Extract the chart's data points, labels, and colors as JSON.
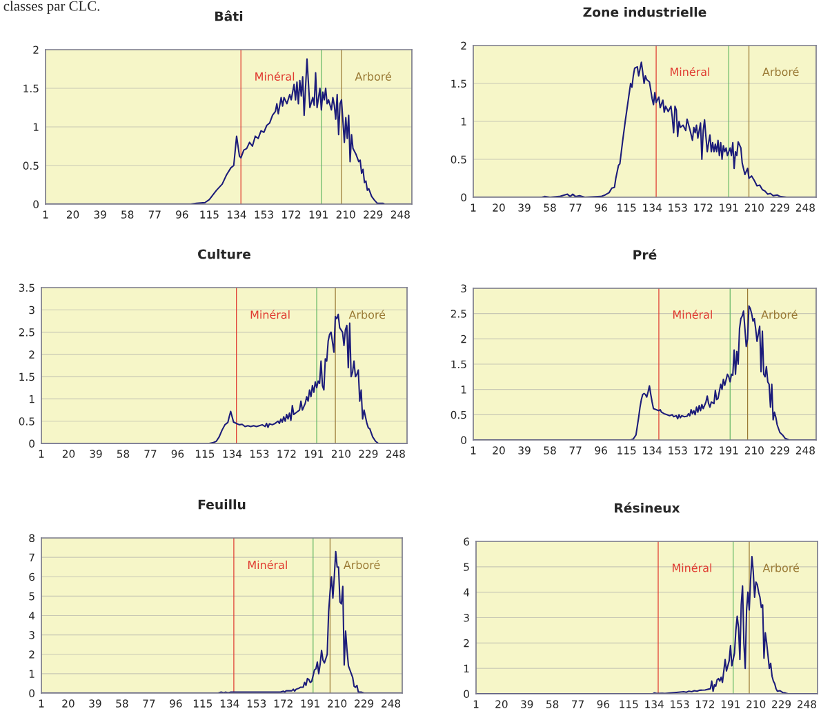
{
  "chart_data": [
    {
      "type": "line",
      "title": "Bâti",
      "annotations": [
        "classes par CLC."
      ],
      "xlim": [
        1,
        256
      ],
      "xticks": [
        1,
        20,
        39,
        58,
        77,
        96,
        115,
        134,
        153,
        172,
        191,
        210,
        229,
        248
      ],
      "ylim": [
        0,
        2
      ],
      "yticks": [
        0,
        0.5,
        1,
        1.5,
        2
      ],
      "grid": "y",
      "ref_lines": [
        {
          "axis": "x",
          "value": 137,
          "label": "Minéral",
          "color": "#e03a30"
        },
        {
          "axis": "x",
          "value": 193,
          "color": "#66b866"
        },
        {
          "axis": "x",
          "value": 207,
          "label": "Arboré",
          "color": "#9a7a35"
        }
      ],
      "series": [
        {
          "color": "#1c1c7a",
          "x": [
            1,
            102,
            106,
            112,
            115,
            120,
            124,
            127,
            130,
            132,
            134,
            136,
            137,
            139,
            141,
            143,
            145,
            147,
            149,
            151,
            153,
            155,
            157,
            159,
            161,
            162,
            163,
            165,
            166,
            167,
            169,
            171,
            172,
            174,
            175,
            176,
            177,
            178,
            179,
            180,
            181,
            183,
            185,
            187,
            188,
            189,
            190,
            192,
            193,
            194,
            195,
            196,
            197,
            198,
            200,
            201,
            202,
            203,
            204,
            205,
            206,
            207,
            209,
            210,
            211,
            212,
            213,
            214,
            215,
            217,
            219,
            220,
            221,
            222,
            223,
            224,
            225,
            226,
            228,
            230,
            232,
            236,
            237,
            256
          ],
          "values": [
            0,
            0,
            0.01,
            0.02,
            0.06,
            0.18,
            0.26,
            0.38,
            0.47,
            0.5,
            0.88,
            0.62,
            0.6,
            0.7,
            0.72,
            0.8,
            0.75,
            0.88,
            0.85,
            0.95,
            0.93,
            1.02,
            1.05,
            1.15,
            1.2,
            1.3,
            1.17,
            1.38,
            1.27,
            1.38,
            1.3,
            1.42,
            1.35,
            1.55,
            1.35,
            1.58,
            1.3,
            1.6,
            1.4,
            1.65,
            1.15,
            1.88,
            1.25,
            1.38,
            1.28,
            1.7,
            1.25,
            1.5,
            1.22,
            1.45,
            1.35,
            1.5,
            1.3,
            1.35,
            1.22,
            1.38,
            1.28,
            1.1,
            1.42,
            0.9,
            1.3,
            1.35,
            0.8,
            1.12,
            0.85,
            1.15,
            0.55,
            0.9,
            0.72,
            0.65,
            0.55,
            0.57,
            0.4,
            0.45,
            0.28,
            0.3,
            0.18,
            0.2,
            0.1,
            0.05,
            0.01,
            0.01,
            0,
            0
          ]
        }
      ]
    },
    {
      "type": "line",
      "title": "Zone industrielle",
      "xlim": [
        1,
        256
      ],
      "xticks": [
        1,
        20,
        39,
        58,
        77,
        96,
        115,
        134,
        153,
        172,
        191,
        210,
        229,
        248
      ],
      "ylim": [
        0,
        2
      ],
      "yticks": [
        0,
        0.5,
        1,
        1.5,
        2
      ],
      "grid": "y",
      "ref_lines": [
        {
          "axis": "x",
          "value": 137,
          "label": "Minéral",
          "color": "#e03a30"
        },
        {
          "axis": "x",
          "value": 191,
          "color": "#66b866"
        },
        {
          "axis": "x",
          "value": 206,
          "label": "Arboré",
          "color": "#9a7a35"
        }
      ],
      "series": [
        {
          "color": "#1c1c7a",
          "x": [
            1,
            52,
            54,
            58,
            65,
            71,
            73,
            75,
            77,
            80,
            84,
            96,
            99,
            102,
            104,
            106,
            107,
            109,
            110,
            112,
            114,
            116,
            118,
            119,
            120,
            121,
            123,
            124,
            126,
            127,
            128,
            129,
            130,
            132,
            134,
            135,
            136,
            137,
            139,
            140,
            142,
            143,
            144,
            146,
            148,
            149,
            150,
            151,
            152,
            153,
            154,
            155,
            157,
            159,
            160,
            162,
            164,
            165,
            166,
            167,
            168,
            170,
            171,
            172,
            173,
            174,
            175,
            176,
            177,
            178,
            179,
            180,
            181,
            182,
            183,
            184,
            185,
            186,
            187,
            188,
            189,
            190,
            192,
            193,
            194,
            195,
            196,
            197,
            198,
            200,
            201,
            203,
            205,
            206,
            208,
            210,
            212,
            214,
            216,
            218,
            220,
            222,
            224,
            227,
            229,
            234,
            256
          ],
          "values": [
            0,
            0,
            0.01,
            0,
            0.01,
            0.04,
            0.01,
            0.04,
            0.01,
            0.02,
            0,
            0.01,
            0.03,
            0.06,
            0.12,
            0.13,
            0.25,
            0.42,
            0.44,
            0.73,
            1.0,
            1.25,
            1.5,
            1.45,
            1.6,
            1.7,
            1.72,
            1.6,
            1.78,
            1.65,
            1.5,
            1.6,
            1.55,
            1.52,
            1.3,
            1.22,
            1.38,
            1.25,
            1.32,
            1.18,
            1.28,
            1.12,
            1.2,
            1.13,
            1.2,
            1.05,
            0.85,
            1.2,
            1.15,
            0.8,
            1.0,
            0.92,
            0.95,
            0.88,
            1.03,
            0.9,
            0.75,
            0.92,
            0.85,
            0.95,
            0.78,
            0.98,
            0.5,
            0.88,
            1.02,
            0.8,
            0.6,
            0.72,
            0.82,
            0.6,
            0.72,
            0.6,
            0.7,
            0.6,
            0.75,
            0.55,
            0.72,
            0.5,
            0.68,
            0.6,
            0.65,
            0.55,
            0.65,
            0.55,
            0.72,
            0.38,
            0.6,
            0.55,
            0.73,
            0.65,
            0.45,
            0.3,
            0.38,
            0.25,
            0.28,
            0.22,
            0.15,
            0.16,
            0.1,
            0.08,
            0.04,
            0.05,
            0.02,
            0.03,
            0.01,
            0,
            0
          ]
        }
      ]
    },
    {
      "type": "line",
      "title": "Culture",
      "xlim": [
        1,
        256
      ],
      "xticks": [
        1,
        20,
        39,
        58,
        77,
        96,
        115,
        134,
        153,
        172,
        191,
        210,
        229,
        248
      ],
      "ylim": [
        0,
        3.5
      ],
      "yticks": [
        0,
        0.5,
        1,
        1.5,
        2,
        2.5,
        3,
        3.5
      ],
      "grid": "y",
      "ref_lines": [
        {
          "axis": "x",
          "value": 137,
          "label": "Minéral",
          "color": "#e03a30"
        },
        {
          "axis": "x",
          "value": 193,
          "color": "#66b866"
        },
        {
          "axis": "x",
          "value": 206,
          "label": "Arboré",
          "color": "#9a7a35"
        }
      ],
      "series": [
        {
          "color": "#1c1c7a",
          "x": [
            1,
            118,
            121,
            123,
            125,
            127,
            129,
            131,
            132,
            133,
            134,
            135,
            137,
            139,
            141,
            143,
            145,
            147,
            149,
            151,
            153,
            155,
            157,
            158,
            159,
            160,
            162,
            164,
            166,
            167,
            168,
            169,
            170,
            171,
            172,
            173,
            174,
            175,
            176,
            177,
            179,
            181,
            182,
            183,
            185,
            186,
            187,
            188,
            189,
            190,
            191,
            192,
            193,
            194,
            195,
            196,
            197,
            198,
            199,
            200,
            201,
            202,
            203,
            205,
            206,
            207,
            208,
            209,
            210,
            211,
            212,
            213,
            214,
            215,
            216,
            217,
            218,
            219,
            220,
            221,
            222,
            223,
            224,
            225,
            226,
            228,
            229,
            230,
            232,
            234,
            236,
            256
          ],
          "values": [
            0,
            0,
            0.02,
            0.05,
            0.15,
            0.3,
            0.42,
            0.47,
            0.6,
            0.72,
            0.6,
            0.48,
            0.45,
            0.42,
            0.43,
            0.38,
            0.4,
            0.38,
            0.4,
            0.38,
            0.4,
            0.42,
            0.38,
            0.45,
            0.36,
            0.44,
            0.42,
            0.45,
            0.5,
            0.45,
            0.55,
            0.48,
            0.6,
            0.5,
            0.65,
            0.55,
            0.68,
            0.52,
            0.85,
            0.65,
            0.7,
            0.75,
            0.95,
            0.75,
            0.9,
            1.05,
            0.95,
            1.2,
            1.05,
            1.3,
            1.15,
            1.38,
            1.25,
            1.4,
            1.35,
            1.85,
            1.3,
            1.2,
            1.9,
            1.85,
            2.3,
            2.45,
            2.5,
            2.05,
            2.85,
            2.8,
            2.9,
            2.6,
            2.55,
            2.5,
            2.2,
            2.55,
            2.65,
            1.7,
            2.7,
            1.5,
            1.6,
            1.85,
            1.5,
            1.55,
            1.65,
            0.95,
            1.2,
            0.55,
            0.75,
            0.45,
            0.35,
            0.33,
            0.15,
            0.05,
            0,
            0
          ]
        }
      ]
    },
    {
      "type": "line",
      "title": "Pré",
      "xlim": [
        1,
        256
      ],
      "xticks": [
        1,
        20,
        39,
        58,
        77,
        96,
        115,
        134,
        153,
        172,
        191,
        210,
        229,
        248
      ],
      "ylim": [
        0,
        3
      ],
      "yticks": [
        0,
        0.5,
        1,
        1.5,
        2,
        2.5,
        3
      ],
      "grid": "y",
      "ref_lines": [
        {
          "axis": "x",
          "value": 139,
          "label": "Minéral",
          "color": "#e03a30"
        },
        {
          "axis": "x",
          "value": 192,
          "color": "#66b866"
        },
        {
          "axis": "x",
          "value": 205,
          "label": "Arboré",
          "color": "#9a7a35"
        }
      ],
      "series": [
        {
          "color": "#1c1c7a",
          "x": [
            1,
            118,
            120,
            122,
            124,
            125,
            126,
            127,
            128,
            129,
            130,
            131,
            132,
            133,
            134,
            135,
            137,
            139,
            140,
            141,
            143,
            145,
            147,
            149,
            150,
            152,
            153,
            154,
            155,
            156,
            158,
            160,
            161,
            162,
            163,
            164,
            165,
            166,
            167,
            168,
            169,
            170,
            171,
            172,
            174,
            175,
            176,
            177,
            178,
            180,
            181,
            182,
            183,
            185,
            186,
            187,
            188,
            190,
            191,
            192,
            193,
            194,
            195,
            196,
            197,
            198,
            199,
            200,
            201,
            202,
            203,
            204,
            205,
            206,
            207,
            208,
            209,
            210,
            211,
            212,
            213,
            214,
            215,
            216,
            217,
            218,
            219,
            220,
            221,
            222,
            223,
            224,
            225,
            226,
            227,
            229,
            231,
            233,
            236,
            256
          ],
          "values": [
            0,
            0,
            0.02,
            0.1,
            0.45,
            0.65,
            0.8,
            0.9,
            0.92,
            0.9,
            0.85,
            0.95,
            1.07,
            0.9,
            0.75,
            0.62,
            0.6,
            0.58,
            0.6,
            0.55,
            0.52,
            0.5,
            0.48,
            0.5,
            0.46,
            0.48,
            0.42,
            0.5,
            0.44,
            0.48,
            0.46,
            0.47,
            0.52,
            0.48,
            0.6,
            0.52,
            0.58,
            0.5,
            0.65,
            0.55,
            0.68,
            0.58,
            0.7,
            0.62,
            0.75,
            0.87,
            0.72,
            0.65,
            0.75,
            0.72,
            0.98,
            0.8,
            0.82,
            1.1,
            1.0,
            1.2,
            1.08,
            1.3,
            1.25,
            1.15,
            1.3,
            1.28,
            1.78,
            1.3,
            1.75,
            1.5,
            2.2,
            2.4,
            2.45,
            2.55,
            2.2,
            1.85,
            2.0,
            2.65,
            2.6,
            2.5,
            2.35,
            2.4,
            2.2,
            1.95,
            2.1,
            2.25,
            1.35,
            2.15,
            1.3,
            1.25,
            1.45,
            1.15,
            1.1,
            0.65,
            1.1,
            0.4,
            0.55,
            0.45,
            0.3,
            0.15,
            0.1,
            0.03,
            0,
            0
          ]
        }
      ]
    },
    {
      "type": "line",
      "title": "Feuillu",
      "xlim": [
        1,
        256
      ],
      "xticks": [
        1,
        20,
        39,
        58,
        77,
        96,
        115,
        134,
        153,
        172,
        191,
        210,
        229,
        248
      ],
      "ylim": [
        0,
        8
      ],
      "yticks": [
        0,
        1,
        2,
        3,
        4,
        5,
        6,
        7,
        8
      ],
      "grid": "y",
      "ref_lines": [
        {
          "axis": "x",
          "value": 137,
          "label": "Minéral",
          "color": "#e03a30"
        },
        {
          "axis": "x",
          "value": 193,
          "color": "#66b866"
        },
        {
          "axis": "x",
          "value": 205,
          "label": "Arboré",
          "color": "#9a7a35"
        }
      ],
      "series": [
        {
          "color": "#1c1c7a",
          "x": [
            1,
            126,
            128,
            130,
            131,
            133,
            135,
            170,
            172,
            173,
            174,
            178,
            179,
            180,
            181,
            183,
            184,
            186,
            187,
            188,
            189,
            190,
            191,
            192,
            193,
            194,
            195,
            196,
            197,
            198,
            199,
            200,
            201,
            203,
            204,
            205,
            206,
            207,
            208,
            209,
            210,
            211,
            212,
            213,
            214,
            215,
            216,
            217,
            218,
            219,
            220,
            221,
            222,
            223,
            224,
            225,
            227,
            229,
            256
          ],
          "values": [
            0,
            0,
            0.05,
            0.02,
            0.05,
            0.02,
            0.05,
            0.05,
            0.1,
            0.05,
            0.12,
            0.12,
            0.2,
            0.1,
            0.2,
            0.25,
            0.3,
            0.3,
            0.55,
            0.4,
            0.75,
            0.7,
            0.55,
            0.6,
            0.9,
            1.2,
            1.25,
            1.6,
            1.0,
            1.5,
            2.2,
            1.7,
            1.55,
            2.0,
            4.2,
            5.2,
            6.0,
            4.9,
            6.0,
            7.3,
            6.5,
            6.5,
            4.7,
            4.6,
            5.5,
            1.45,
            3.2,
            2.2,
            1.4,
            1.2,
            1.0,
            0.8,
            0.35,
            0.3,
            0.4,
            0.05,
            0.05,
            0,
            0
          ]
        }
      ]
    },
    {
      "type": "line",
      "title": "Résineux",
      "xlim": [
        1,
        256
      ],
      "xticks": [
        1,
        20,
        39,
        58,
        77,
        96,
        115,
        134,
        153,
        172,
        191,
        210,
        229,
        248
      ],
      "ylim": [
        0,
        6
      ],
      "yticks": [
        0,
        1,
        2,
        3,
        4,
        5,
        6
      ],
      "grid": "y",
      "ref_lines": [
        {
          "axis": "x",
          "value": 137,
          "label": "Minéral",
          "color": "#e03a30"
        },
        {
          "axis": "x",
          "value": 193,
          "color": "#66b866"
        },
        {
          "axis": "x",
          "value": 205,
          "label": "Arboré",
          "color": "#9a7a35"
        }
      ],
      "series": [
        {
          "color": "#1c1c7a",
          "x": [
            1,
            133,
            134,
            136,
            140,
            142,
            148,
            152,
            156,
            158,
            160,
            162,
            164,
            166,
            168,
            172,
            176,
            177,
            178,
            179,
            180,
            181,
            182,
            183,
            184,
            185,
            187,
            188,
            190,
            191,
            192,
            194,
            195,
            196,
            197,
            198,
            199,
            200,
            201,
            202,
            203,
            204,
            205,
            206,
            207,
            208,
            209,
            210,
            211,
            212,
            213,
            214,
            215,
            216,
            217,
            218,
            219,
            220,
            221,
            222,
            223,
            224,
            225,
            226,
            228,
            230,
            232,
            234,
            256
          ],
          "values": [
            0,
            0,
            0.03,
            0.01,
            0.02,
            0.01,
            0.04,
            0.06,
            0.08,
            0.06,
            0.1,
            0.08,
            0.12,
            0.1,
            0.14,
            0.15,
            0.2,
            0.5,
            0.1,
            0.35,
            0.3,
            0.55,
            0.6,
            0.5,
            0.65,
            0.45,
            1.35,
            0.9,
            1.3,
            1.9,
            1.1,
            1.6,
            2.5,
            3.05,
            2.6,
            1.35,
            3.5,
            4.25,
            2.0,
            1.0,
            3.3,
            4.0,
            3.3,
            4.5,
            5.4,
            4.8,
            3.8,
            4.4,
            4.3,
            4.0,
            3.8,
            3.4,
            3.5,
            1.4,
            2.4,
            2.0,
            1.5,
            1.0,
            1.2,
            0.7,
            0.5,
            0.4,
            0.2,
            0.1,
            0.12,
            0.05,
            0.03,
            0,
            0
          ]
        }
      ]
    }
  ]
}
